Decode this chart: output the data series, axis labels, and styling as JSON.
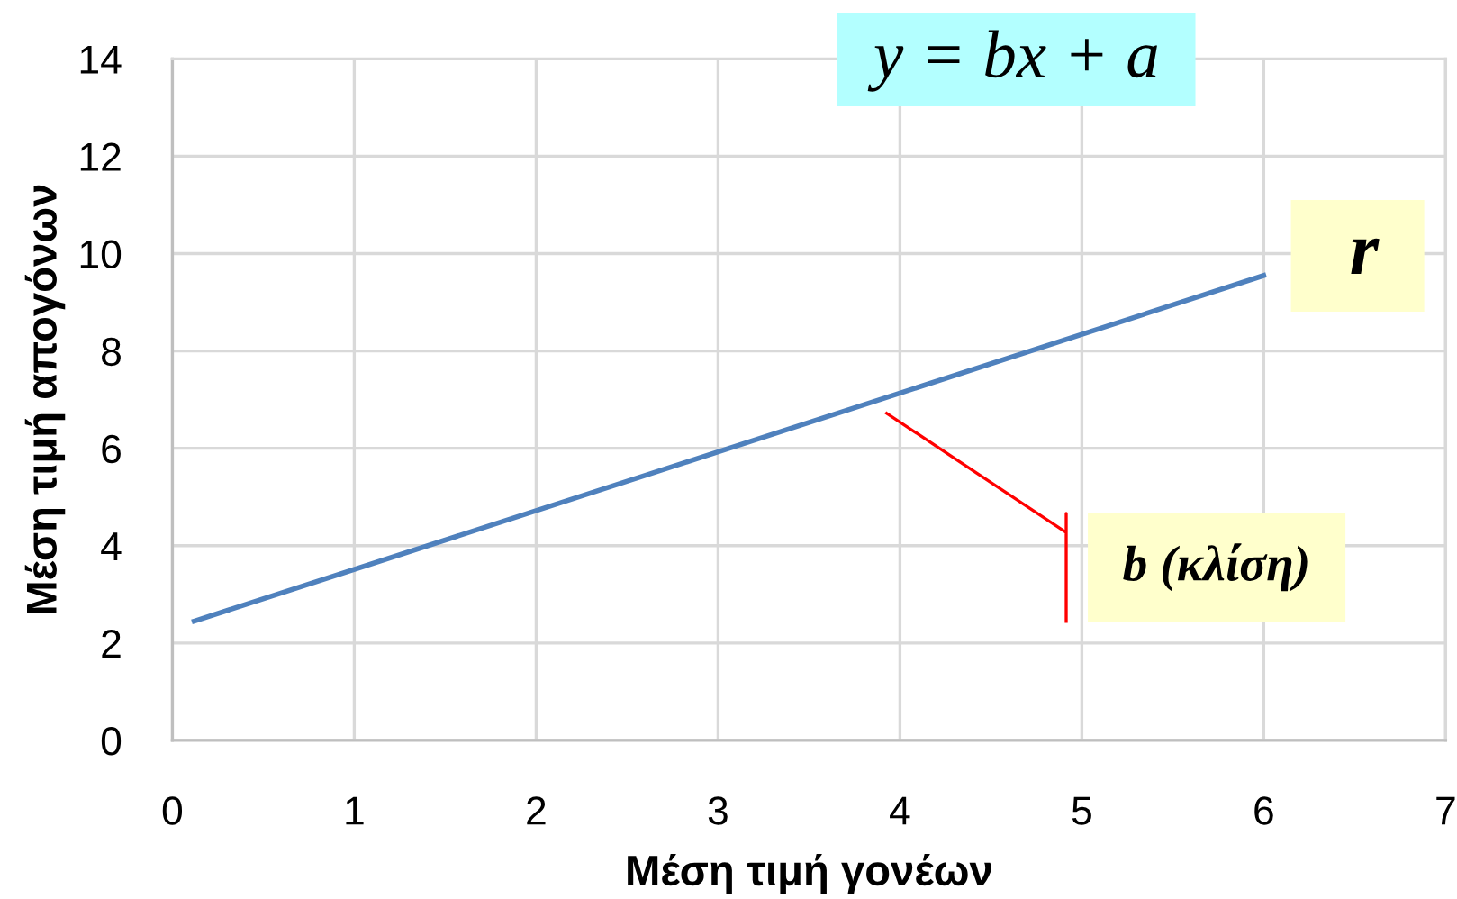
{
  "chart_data": {
    "type": "line",
    "xlabel": "Μέση τιμή γονέων",
    "ylabel": "Μέση τιμή απογόνων",
    "series": [
      {
        "color": "#4f81bd",
        "x": [
          0.12,
          6.0
        ],
        "values": [
          2.45,
          9.55
        ]
      }
    ],
    "xlim": [
      0,
      7
    ],
    "xticks": [
      0,
      1,
      2,
      3,
      4,
      5,
      6,
      7
    ],
    "ylim": [
      0,
      14
    ],
    "yticks": [
      0,
      2,
      4,
      6,
      8,
      10,
      12,
      14
    ],
    "grid": true,
    "annotations": [
      "y = bx + a",
      "r",
      "b (κλίση)"
    ]
  }
}
